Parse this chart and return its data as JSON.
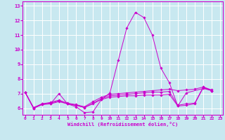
{
  "background_color": "#c8e8f0",
  "line_color": "#cc00cc",
  "grid_color": "#ffffff",
  "xlim": [
    -0.3,
    23.3
  ],
  "ylim": [
    5.55,
    13.3
  ],
  "yticks": [
    6,
    7,
    8,
    9,
    10,
    11,
    12,
    13
  ],
  "xticks": [
    0,
    1,
    2,
    3,
    4,
    5,
    6,
    7,
    8,
    9,
    10,
    11,
    12,
    13,
    14,
    15,
    16,
    17,
    18,
    19,
    20,
    21,
    22,
    23
  ],
  "xlabel": "Windchill (Refroidissement éolien,°C)",
  "series": [
    {
      "x": [
        0,
        1,
        2,
        3,
        4,
        5,
        6,
        7,
        8,
        9,
        10,
        11,
        12,
        13,
        14,
        15,
        16,
        17,
        18,
        19,
        21,
        22
      ],
      "y": [
        7.1,
        6.0,
        6.3,
        6.3,
        7.0,
        6.3,
        6.1,
        5.7,
        5.75,
        6.6,
        7.05,
        9.3,
        11.5,
        12.55,
        12.2,
        11.0,
        8.75,
        7.75,
        6.15,
        7.05,
        7.35,
        7.2
      ]
    },
    {
      "x": [
        0,
        1,
        2,
        3,
        4,
        5,
        6,
        7,
        8,
        9,
        10,
        11,
        12,
        13,
        14,
        15,
        16,
        17,
        18,
        19,
        20,
        21,
        22
      ],
      "y": [
        7.1,
        6.05,
        6.3,
        6.4,
        6.55,
        6.35,
        6.25,
        6.1,
        6.45,
        6.75,
        6.95,
        7.0,
        7.05,
        7.1,
        7.15,
        7.2,
        7.25,
        7.3,
        7.2,
        7.25,
        7.3,
        7.45,
        7.25
      ]
    },
    {
      "x": [
        0,
        1,
        2,
        3,
        4,
        5,
        6,
        7,
        8,
        9,
        10,
        11,
        12,
        13,
        14,
        15,
        16,
        17,
        18,
        19,
        20,
        21,
        22
      ],
      "y": [
        7.1,
        6.0,
        6.25,
        6.3,
        6.45,
        6.3,
        6.2,
        6.05,
        6.3,
        6.6,
        6.75,
        6.8,
        6.85,
        6.85,
        6.9,
        6.9,
        6.9,
        6.95,
        6.15,
        6.2,
        6.3,
        7.4,
        7.2
      ]
    },
    {
      "x": [
        0,
        1,
        2,
        3,
        4,
        5,
        6,
        7,
        8,
        9,
        10,
        11,
        12,
        13,
        14,
        15,
        16,
        17,
        18,
        19,
        20,
        21,
        22
      ],
      "y": [
        7.1,
        6.0,
        6.25,
        6.35,
        6.5,
        6.3,
        6.2,
        6.05,
        6.35,
        6.65,
        6.85,
        6.9,
        6.95,
        7.0,
        7.05,
        7.1,
        7.1,
        7.15,
        6.2,
        6.3,
        6.35,
        7.45,
        7.2
      ]
    }
  ]
}
